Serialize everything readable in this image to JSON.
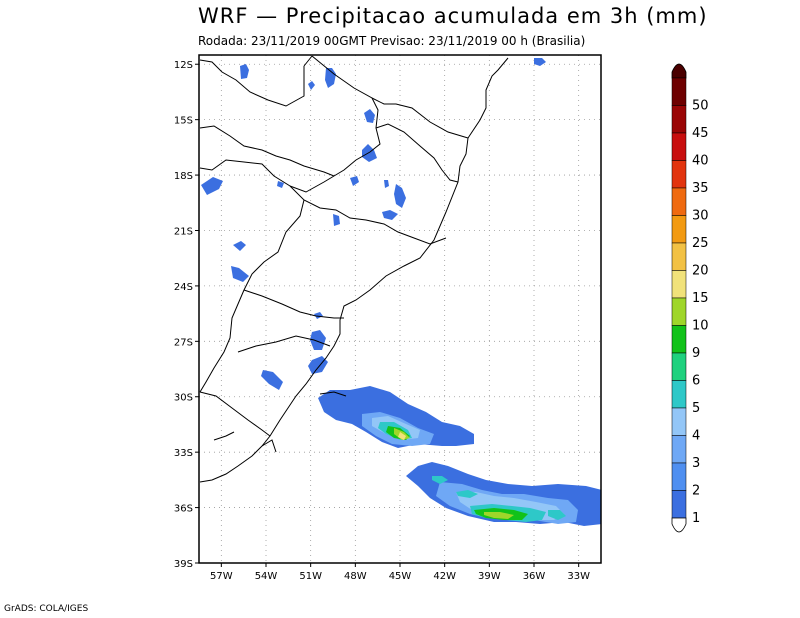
{
  "header": {
    "title": "WRF — Precipitacao acumulada em 3h (mm)",
    "subtitle": "Rodada: 23/11/2019 00GMT Previsao: 23/11/2019 00 h (Brasilia)"
  },
  "footer": {
    "credit": "GrADS: COLA/IGES"
  },
  "map": {
    "lat_labels": [
      "12S",
      "15S",
      "18S",
      "21S",
      "24S",
      "27S",
      "30S",
      "33S",
      "36S",
      "39S"
    ],
    "lon_labels": [
      "57W",
      "54W",
      "51W",
      "48W",
      "45W",
      "42W",
      "39W",
      "36W",
      "33W"
    ],
    "lat_range": [
      -39,
      -11.5
    ],
    "lon_range": [
      -58.5,
      -31.5
    ],
    "grid": true,
    "grid_style": "dotted"
  },
  "colorbar": {
    "labels": [
      "1",
      "2",
      "3",
      "4",
      "5",
      "6",
      "9",
      "10",
      "15",
      "20",
      "25",
      "30",
      "35",
      "40",
      "45",
      "50"
    ],
    "colors": [
      "#3b6fe0",
      "#4f8ff0",
      "#6fa8f5",
      "#93c6f7",
      "#2ec8c8",
      "#1fd17e",
      "#12c21a",
      "#9fd62a",
      "#f1e27a",
      "#f2c144",
      "#f29a12",
      "#ef6a10",
      "#e2340e",
      "#c80e0e",
      "#9a0505",
      "#6e0000"
    ],
    "top_cap_color": "#4a0000",
    "bottom_cap_color": "#ffffff"
  },
  "precip_colors": {
    "blue": "#3b6fe0",
    "mid_blue": "#6fa8f5",
    "light_blue": "#93c6f7",
    "cyan": "#2ec8c8",
    "green": "#12c21a",
    "lime": "#9fd62a",
    "yellow": "#f1e27a"
  }
}
